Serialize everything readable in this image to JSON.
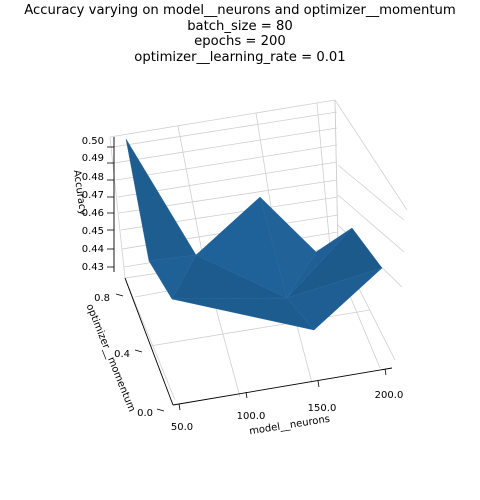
{
  "chart_data": {
    "type": "surface3d",
    "title_lines": [
      "Accuracy varying on model__neurons and optimizer__momentum",
      "batch_size = 80",
      "epochs = 200",
      "optimizer__learning_rate = 0.01"
    ],
    "xlabel": "model__neurons",
    "ylabel": "optimizer__momentum",
    "zlabel": "Accuracy",
    "x_ticks": [
      "50.0",
      "100.0",
      "150.0",
      "200.0"
    ],
    "y_ticks": [
      "0.0",
      "0.4",
      "0.8"
    ],
    "z_ticks": [
      "0.43",
      "0.44",
      "0.45",
      "0.46",
      "0.47",
      "0.48",
      "0.49",
      "0.50"
    ],
    "surface_color": "#1f5f94",
    "grid": true
  }
}
